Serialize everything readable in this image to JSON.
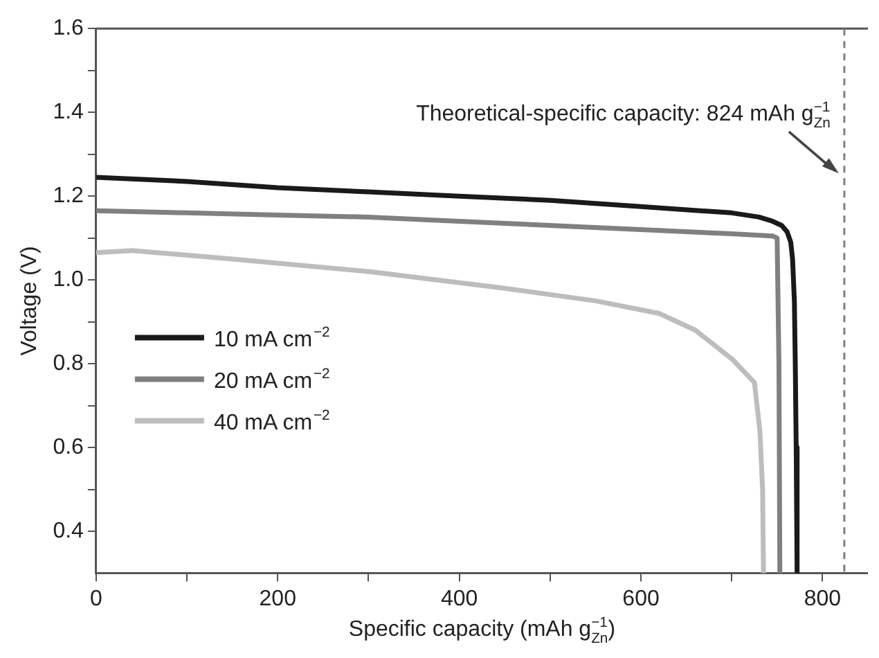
{
  "chart_data": {
    "type": "line",
    "xlabel": "Specific capacity (mAh g$_{Zn}$$^{−1}$)",
    "ylabel": "Voltage (V)",
    "xlim": [
      0,
      850
    ],
    "ylim": [
      0.3,
      1.6
    ],
    "xticks": [
      0,
      {
        "value": 100,
        "label": null
      },
      200,
      {
        "value": 300,
        "label": null
      },
      400,
      {
        "value": 500,
        "label": null
      },
      600,
      {
        "value": 700,
        "label": null
      },
      800
    ],
    "yticks": [
      {
        "value": 0.5,
        "label": null
      },
      {
        "value": 0.7,
        "label": null
      },
      {
        "value": 0.9,
        "label": null
      },
      {
        "value": 1.1,
        "label": null
      },
      {
        "value": 1.3,
        "label": null
      },
      {
        "value": 1.5,
        "label": null
      },
      0.4,
      0.6,
      0.8,
      {
        "value": 1,
        "label": "1.0"
      },
      1.2,
      1.4,
      1.6
    ],
    "grid": false,
    "legend": "bottom left",
    "marker": "none",
    "line_style": "solid",
    "series": [
      {
        "name": "10 mA cm$^{−2}$",
        "color": "#1a1a1a",
        "x": [
          0,
          100,
          200,
          300,
          400,
          500,
          600,
          700,
          730,
          745,
          755,
          761,
          765,
          767,
          769,
          770,
          771,
          772
        ],
        "values": [
          1.245,
          1.235,
          1.22,
          1.21,
          1.2,
          1.19,
          1.175,
          1.16,
          1.15,
          1.14,
          1.13,
          1.115,
          1.09,
          1.05,
          0.95,
          0.8,
          0.6,
          0.3
        ]
      },
      {
        "name": "20 mA cm$^{−2}$",
        "color": "#808080",
        "x": [
          0,
          100,
          200,
          300,
          400,
          500,
          600,
          700,
          745,
          750,
          752,
          753
        ],
        "values": [
          1.165,
          1.16,
          1.155,
          1.15,
          1.14,
          1.13,
          1.12,
          1.11,
          1.105,
          1.1,
          0.8,
          0.3
        ]
      },
      {
        "name": "40 mA cm$^{−2}$",
        "color": "#bdbdbd",
        "x": [
          0,
          40,
          150,
          300,
          450,
          550,
          620,
          660,
          701,
          725,
          731,
          734,
          735
        ],
        "values": [
          1.065,
          1.07,
          1.05,
          1.02,
          0.98,
          0.95,
          0.92,
          0.88,
          0.81,
          0.755,
          0.64,
          0.5,
          0.3
        ]
      }
    ],
    "ref_lines": [
      {
        "axis": "x",
        "value": 824,
        "label": "Theoretical-specific capacity: 824 mAh g$_{Zn}$$^{−1}$",
        "color": "#808080",
        "line_style": "dashed"
      }
    ]
  }
}
